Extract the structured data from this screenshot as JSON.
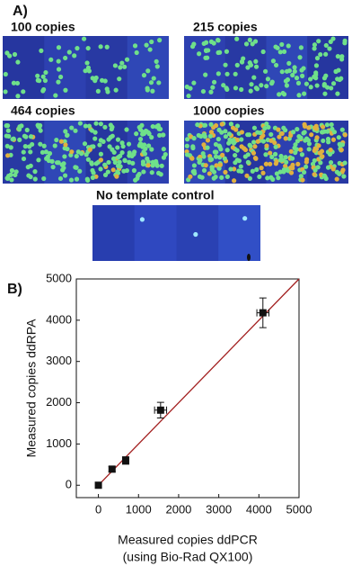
{
  "panel_a": {
    "label": "A)",
    "images": [
      "100 copies",
      "215 copies",
      "464 copies",
      "1000 copies",
      "No template control"
    ]
  },
  "chart_data": {
    "type": "scatter",
    "label": "B)",
    "xlabel": "Measured copies ddPCR",
    "xlabel_sub": "(using Bio-Rad QX100)",
    "ylabel": "Measured copies ddRPA",
    "x": [
      0,
      340,
      680,
      1550,
      4100
    ],
    "xerr": [
      0,
      0,
      0,
      150,
      150
    ],
    "values": [
      0,
      390,
      600,
      1820,
      4180
    ],
    "yerr": [
      0,
      60,
      90,
      190,
      360
    ],
    "color": "#111111",
    "fit": {
      "x": [
        -50,
        5000
      ],
      "y": [
        -50,
        5000
      ],
      "color": "#a32020"
    },
    "xlim": [
      -550,
      5000
    ],
    "ylim": [
      -300,
      5000
    ],
    "xticks": [
      0,
      1000,
      2000,
      3000,
      4000,
      5000
    ],
    "yticks": [
      0,
      1000,
      2000,
      3000,
      4000,
      5000
    ]
  }
}
